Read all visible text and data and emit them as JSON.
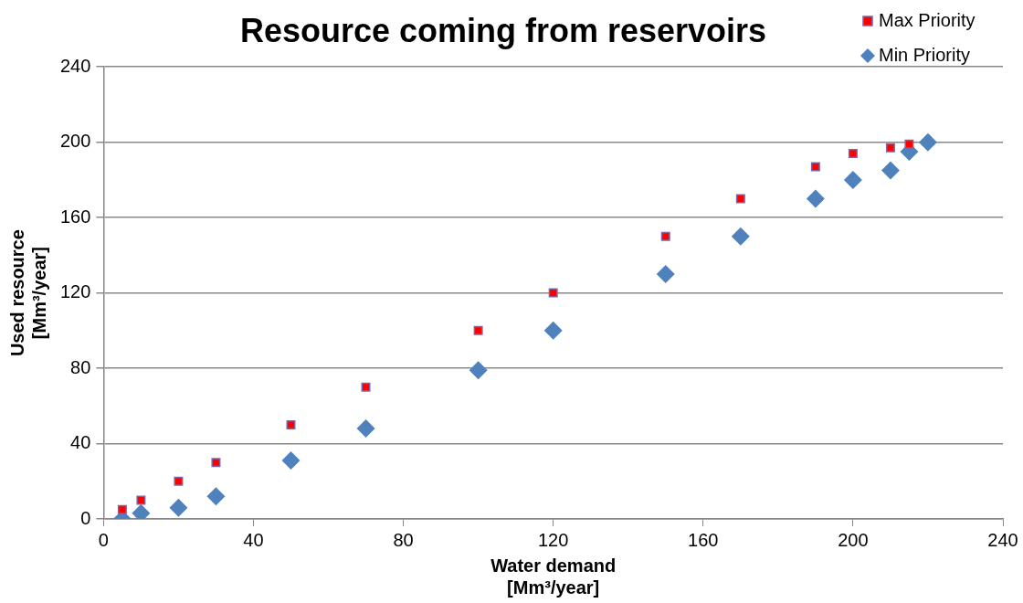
{
  "chart_data": {
    "type": "scatter",
    "title": "Resource coming from reservoirs",
    "xlabel": "Water demand\n[Mm³/year]",
    "ylabel": "Used resource\n[Mm³/year]",
    "xlim": [
      0,
      240
    ],
    "xticks": [
      0,
      40,
      80,
      120,
      160,
      200,
      240
    ],
    "ylim": [
      0,
      240
    ],
    "yticks": [
      0,
      40,
      80,
      120,
      160,
      200,
      240
    ],
    "grid": "y",
    "legend": "top right",
    "series": [
      {
        "name": "Max Priority",
        "color": "#ff0000",
        "marker": "square",
        "x": [
          5,
          10,
          20,
          30,
          50,
          70,
          100,
          120,
          150,
          170,
          190,
          200,
          210,
          215
        ],
        "values": [
          5,
          10,
          20,
          30,
          50,
          70,
          100,
          120,
          150,
          170,
          187,
          194,
          197,
          199
        ]
      },
      {
        "name": "Min Priority",
        "color": "#4f81bd",
        "marker": "diamond",
        "x": [
          5,
          10,
          20,
          30,
          50,
          70,
          100,
          120,
          150,
          170,
          190,
          200,
          210,
          215,
          220
        ],
        "values": [
          0,
          3,
          6,
          12,
          31,
          48,
          79,
          100,
          130,
          150,
          170,
          180,
          185,
          195,
          200
        ]
      }
    ]
  }
}
